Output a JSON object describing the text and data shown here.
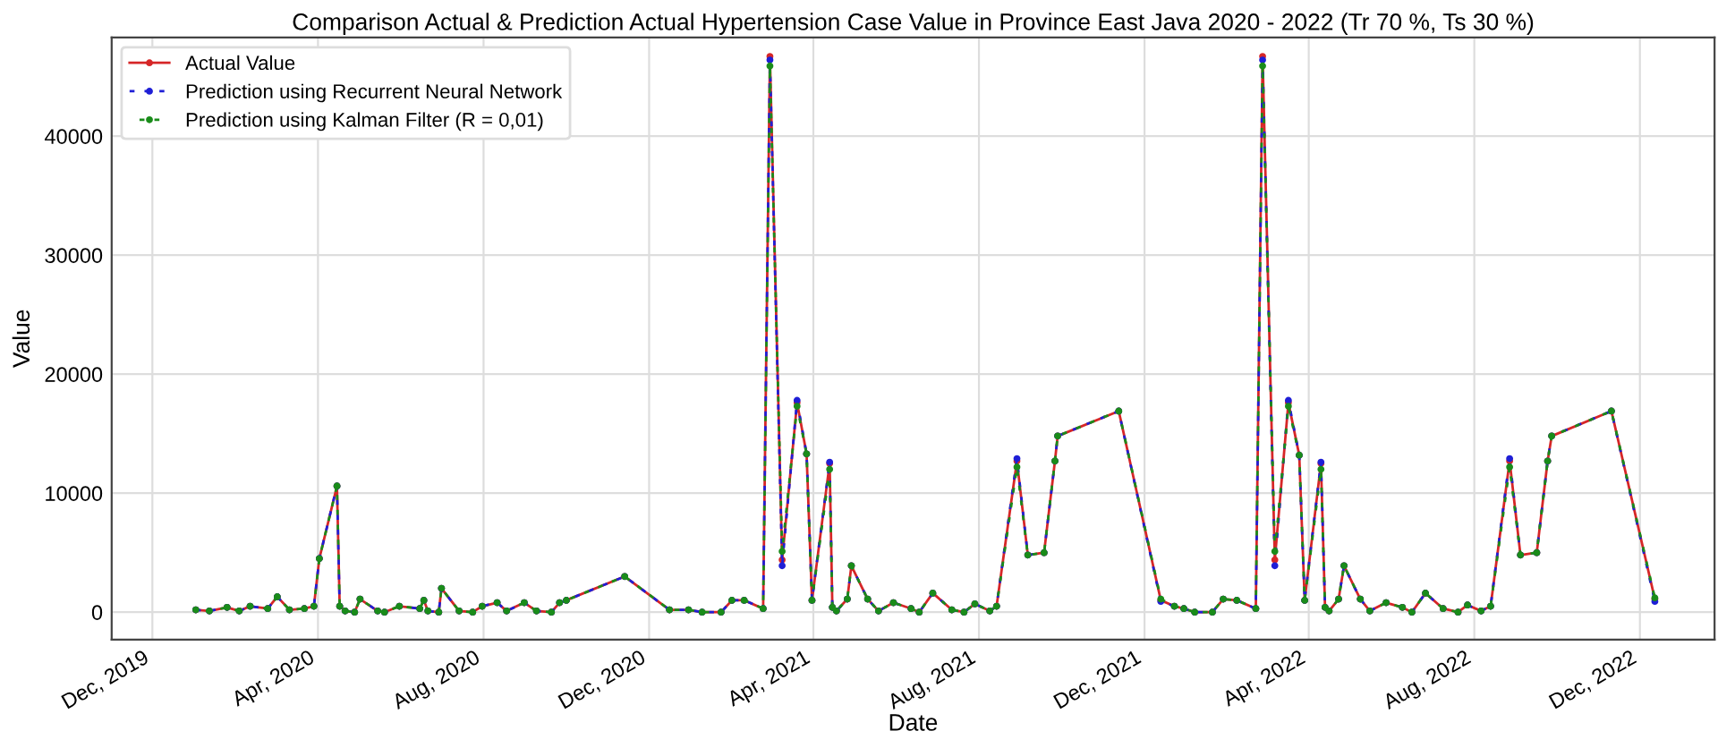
{
  "chart_data": {
    "type": "line",
    "title": "Comparison Actual & Prediction Actual Hypertension Case Value in Province East Java 2020 - 2022 (Tr 70 %, Ts 30 %)",
    "xlabel": "Date",
    "ylabel": "Value",
    "x": [
      "2020-01-02",
      "2020-01-12",
      "2020-01-25",
      "2020-02-03",
      "2020-02-11",
      "2020-02-24",
      "2020-03-02",
      "2020-03-11",
      "2020-03-22",
      "2020-03-29",
      "2020-04-02",
      "2020-04-15",
      "2020-04-17",
      "2020-04-21",
      "2020-04-28",
      "2020-05-02",
      "2020-05-15",
      "2020-05-20",
      "2020-05-31",
      "2020-06-15",
      "2020-06-18",
      "2020-06-21",
      "2020-06-29",
      "2020-07-01",
      "2020-07-14",
      "2020-07-24",
      "2020-07-31",
      "2020-08-11",
      "2020-08-18",
      "2020-08-31",
      "2020-09-09",
      "2020-09-20",
      "2020-09-26",
      "2020-10-01",
      "2020-11-13",
      "2020-12-16",
      "2020-12-30",
      "2021-01-09",
      "2021-01-23",
      "2021-01-31",
      "2021-02-09",
      "2021-02-23",
      "2021-02-28",
      "2021-03-09",
      "2021-03-20",
      "2021-03-27",
      "2021-03-31",
      "2021-04-13",
      "2021-04-15",
      "2021-04-18",
      "2021-04-26",
      "2021-04-29",
      "2021-05-11",
      "2021-05-19",
      "2021-05-30",
      "2021-06-12",
      "2021-06-18",
      "2021-06-28",
      "2021-07-12",
      "2021-07-21",
      "2021-07-29",
      "2021-08-09",
      "2021-08-14",
      "2021-08-29",
      "2021-09-06",
      "2021-09-18",
      "2021-09-26",
      "2021-09-28",
      "2021-11-12",
      "2021-12-13",
      "2021-12-23",
      "2021-12-30",
      "2022-01-07",
      "2022-01-20",
      "2022-01-28",
      "2022-02-07",
      "2022-02-21",
      "2022-02-26",
      "2022-03-07",
      "2022-03-17",
      "2022-03-25",
      "2022-03-29",
      "2022-04-10",
      "2022-04-13",
      "2022-04-16",
      "2022-04-23",
      "2022-04-27",
      "2022-05-09",
      "2022-05-16",
      "2022-05-28",
      "2022-06-09",
      "2022-06-16",
      "2022-06-26",
      "2022-07-09",
      "2022-07-20",
      "2022-07-27",
      "2022-08-06",
      "2022-08-13",
      "2022-08-27",
      "2022-09-04",
      "2022-09-16",
      "2022-09-24",
      "2022-09-27",
      "2022-11-10",
      "2022-12-12"
    ],
    "series": [
      {
        "name": "Actual Value",
        "color": "#d62728",
        "line_style": "solid",
        "values": [
          200,
          100,
          400,
          100,
          500,
          300,
          1300,
          200,
          300,
          500,
          4500,
          10600,
          500,
          100,
          0,
          1100,
          100,
          0,
          500,
          300,
          1000,
          100,
          0,
          2000,
          100,
          0,
          500,
          800,
          100,
          800,
          100,
          0,
          800,
          1000,
          3000,
          200,
          200,
          0,
          0,
          1000,
          1000,
          300,
          46700,
          4400,
          17600,
          13300,
          1000,
          12500,
          400,
          100,
          1100,
          3900,
          1100,
          100,
          800,
          300,
          0,
          1600,
          200,
          0,
          700,
          100,
          500,
          12700,
          4800,
          5000,
          12700,
          14800,
          16900,
          1000,
          500,
          300,
          0,
          0,
          1100,
          1000,
          300,
          46700,
          4400,
          17600,
          13200,
          1000,
          12500,
          400,
          100,
          1100,
          3900,
          1100,
          100,
          800,
          400,
          0,
          1600,
          300,
          0,
          600,
          100,
          500,
          12700,
          4800,
          5000,
          12700,
          14800,
          16900,
          1100
        ]
      },
      {
        "name": "Prediction using Recurrent Neural Network",
        "color": "#1f1fd6",
        "line_style": "dashed",
        "values": [
          200,
          100,
          400,
          100,
          500,
          300,
          1300,
          200,
          300,
          500,
          4500,
          10600,
          500,
          100,
          0,
          1100,
          100,
          0,
          500,
          300,
          1000,
          100,
          0,
          2000,
          100,
          0,
          500,
          800,
          100,
          800,
          100,
          0,
          800,
          1000,
          3000,
          200,
          200,
          0,
          0,
          1000,
          1000,
          300,
          46400,
          3900,
          17800,
          13300,
          1000,
          12600,
          400,
          100,
          1100,
          3900,
          1100,
          100,
          800,
          300,
          0,
          1600,
          200,
          0,
          700,
          100,
          500,
          12900,
          4800,
          5000,
          12700,
          14800,
          16900,
          900,
          500,
          300,
          0,
          0,
          1100,
          1000,
          300,
          46400,
          3900,
          17800,
          13200,
          1000,
          12600,
          400,
          100,
          1100,
          3900,
          1100,
          100,
          800,
          400,
          0,
          1600,
          300,
          0,
          600,
          100,
          500,
          12900,
          4800,
          5000,
          12700,
          14800,
          16900,
          900
        ]
      },
      {
        "name": "Prediction using Kalman Filter (R = 0,01)",
        "color": "#1a8c1a",
        "line_style": "dashed",
        "values": [
          200,
          100,
          400,
          100,
          500,
          300,
          1300,
          200,
          300,
          500,
          4500,
          10600,
          500,
          100,
          0,
          1100,
          100,
          0,
          500,
          300,
          1000,
          100,
          0,
          2000,
          100,
          0,
          500,
          800,
          100,
          800,
          100,
          0,
          800,
          1000,
          3000,
          200,
          200,
          0,
          0,
          1000,
          1000,
          300,
          45900,
          5100,
          17300,
          13300,
          1000,
          12000,
          400,
          100,
          1100,
          3900,
          1100,
          100,
          800,
          300,
          0,
          1600,
          200,
          0,
          700,
          100,
          500,
          12200,
          4800,
          5000,
          12700,
          14800,
          16900,
          1100,
          500,
          300,
          0,
          0,
          1100,
          1000,
          300,
          45900,
          5100,
          17300,
          13200,
          1000,
          12000,
          400,
          100,
          1100,
          3900,
          1100,
          100,
          800,
          400,
          0,
          1600,
          300,
          0,
          600,
          100,
          500,
          12200,
          4800,
          5000,
          12700,
          14800,
          16900,
          1200
        ]
      }
    ],
    "xlim": [
      "2019-11-01",
      "2023-01-25"
    ],
    "xticks": [
      {
        "value": "2019-12-01",
        "label": "Dec, 2019"
      },
      {
        "value": "2020-04-01",
        "label": "Apr, 2020"
      },
      {
        "value": "2020-08-01",
        "label": "Aug, 2020"
      },
      {
        "value": "2020-12-01",
        "label": "Dec, 2020"
      },
      {
        "value": "2021-04-01",
        "label": "Apr, 2021"
      },
      {
        "value": "2021-08-01",
        "label": "Aug, 2021"
      },
      {
        "value": "2021-12-01",
        "label": "Dec, 2021"
      },
      {
        "value": "2022-04-01",
        "label": "Apr, 2022"
      },
      {
        "value": "2022-08-01",
        "label": "Aug, 2022"
      },
      {
        "value": "2022-12-01",
        "label": "Dec, 2022"
      }
    ],
    "ylim": [
      -2300,
      48300
    ],
    "yticks": [
      0,
      10000,
      20000,
      30000,
      40000
    ],
    "grid": true,
    "legend": "top left",
    "marker": "circle"
  }
}
